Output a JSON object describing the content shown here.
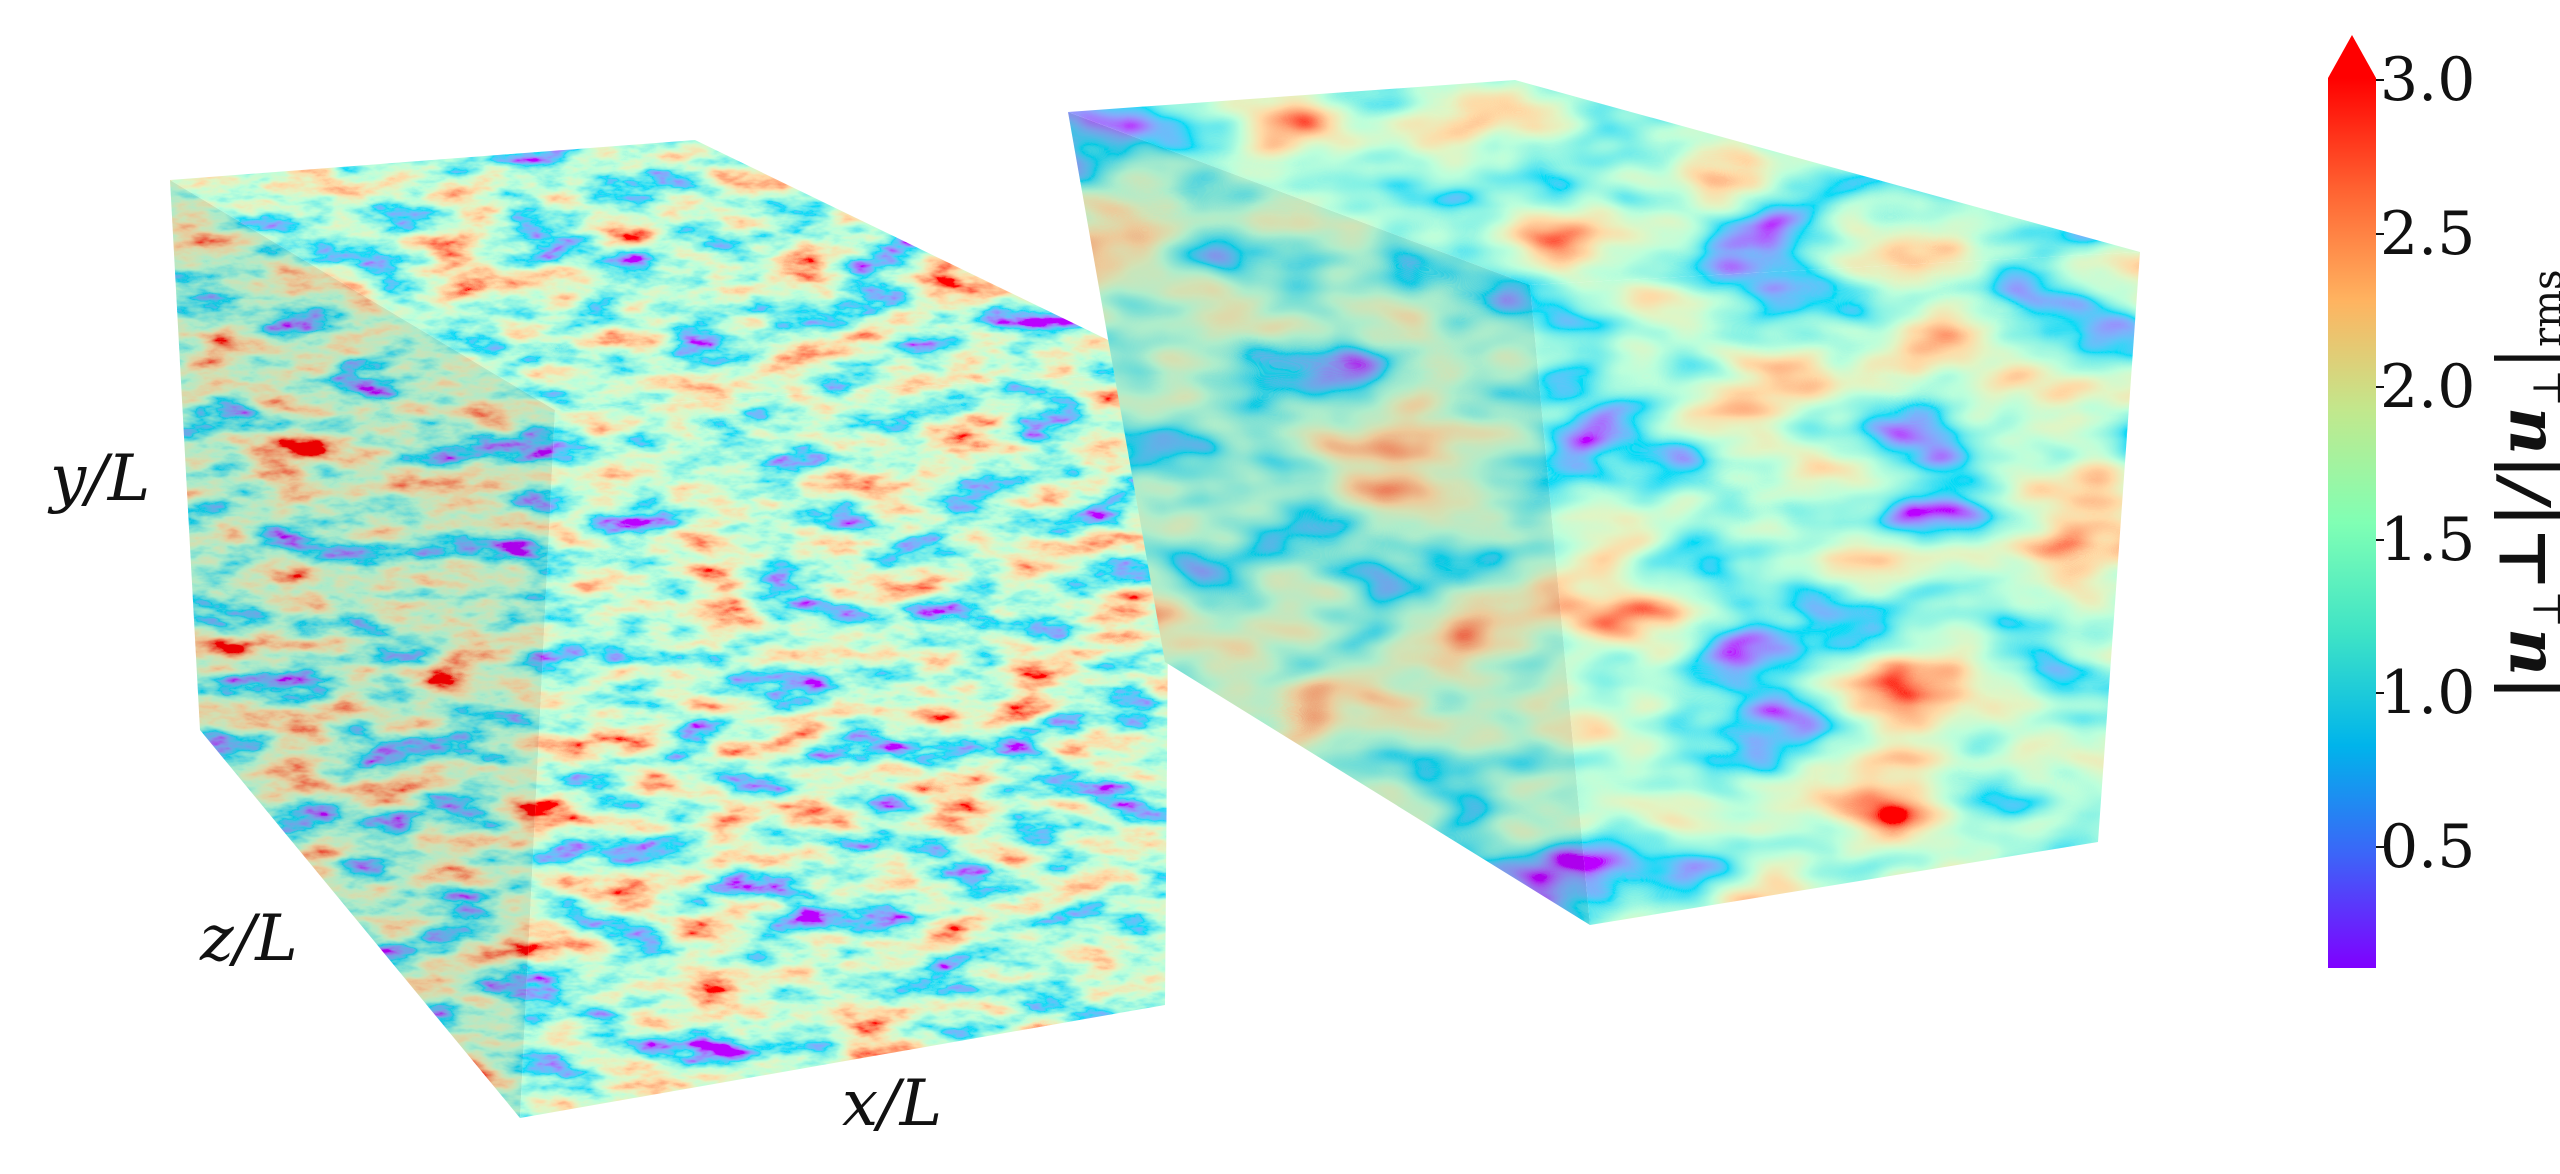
{
  "axes": {
    "y_label": "y/L",
    "z_label": "z/L",
    "x_label": "x/L"
  },
  "colorbar": {
    "label": "|u⊥|/|u⊥|rms",
    "label_base": "|u",
    "label_mid": "⊥|/|u",
    "label_sub2": "⊥",
    "label_tail": "|",
    "label_sub3": "rms",
    "ticks": [
      "3.0",
      "2.5",
      "2.0",
      "1.5",
      "1.0",
      "0.5"
    ],
    "range": [
      0.1,
      3.0
    ],
    "colormap": "rainbow",
    "extend": "max",
    "stops": [
      "#7f00ff",
      "#3d63f8",
      "#00b4eb",
      "#3ee3c6",
      "#80ffb4",
      "#c1e88d",
      "#ffb360",
      "#ff6231",
      "#ff0000"
    ]
  }
}
